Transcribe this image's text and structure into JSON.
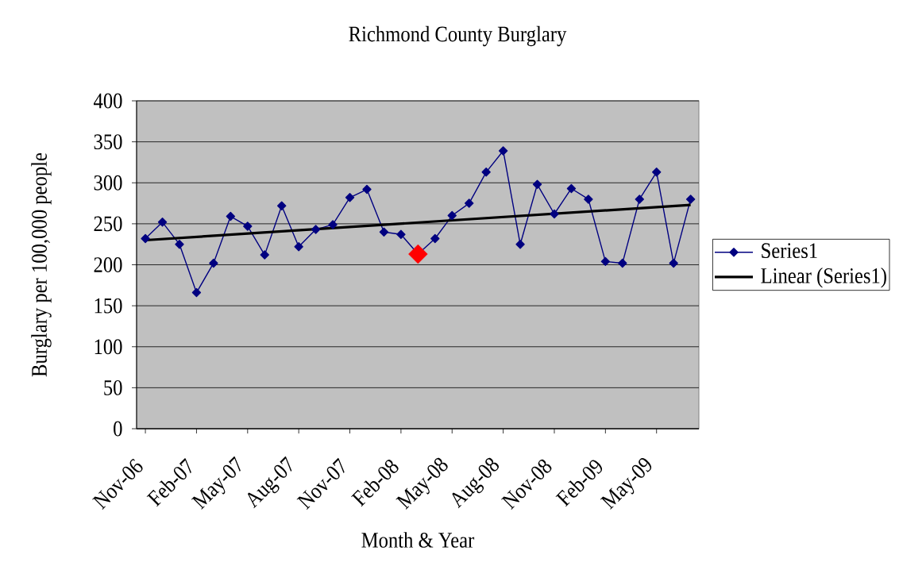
{
  "chart_data": {
    "type": "line",
    "title": "Richmond County Burglary",
    "xlabel": "Month & Year",
    "ylabel": "Burglary per 100,000 people",
    "x": [
      "2006-11",
      "2006-12",
      "2007-01",
      "2007-02",
      "2007-03",
      "2007-04",
      "2007-05",
      "2007-06",
      "2007-07",
      "2007-08",
      "2007-09",
      "2007-10",
      "2007-11",
      "2007-12",
      "2008-01",
      "2008-02",
      "2008-03",
      "2008-04",
      "2008-05",
      "2008-06",
      "2008-07",
      "2008-08",
      "2008-09",
      "2008-10",
      "2008-11",
      "2008-12",
      "2009-01",
      "2009-02",
      "2009-03",
      "2009-04",
      "2009-05",
      "2009-06",
      "2009-07"
    ],
    "series": [
      {
        "name": "Series1",
        "color": "#000080",
        "values": [
          232,
          252,
          225,
          166,
          202,
          259,
          247,
          212,
          272,
          222,
          243,
          249,
          282,
          292,
          240,
          237,
          213,
          232,
          260,
          275,
          313,
          339,
          225,
          298,
          262,
          293,
          280,
          204,
          202,
          280,
          313,
          202,
          280
        ],
        "colors": [
          "#000080",
          "#000080",
          "#000080",
          "#000080",
          "#000080",
          "#000080",
          "#000080",
          "#000080",
          "#000080",
          "#000080",
          "#000080",
          "#000080",
          "#000080",
          "#000080",
          "#000080",
          "#000080",
          "#ff0000",
          "#000080",
          "#000080",
          "#000080",
          "#000080",
          "#000080",
          "#000080",
          "#000080",
          "#000080",
          "#000080",
          "#000080",
          "#000080",
          "#000080",
          "#000080",
          "#000080",
          "#000080",
          "#000080"
        ]
      },
      {
        "name": "Linear (Series1)",
        "type": "line",
        "color": "#000000",
        "marker": "none",
        "x": [
          "2006-11",
          "2009-07"
        ],
        "values": [
          230,
          273
        ]
      }
    ],
    "xlim": [
      "2006-10-16",
      "2009-07-16"
    ],
    "xticks": [
      {
        "value": "2006-11",
        "label": "Nov-06"
      },
      {
        "value": "2007-02",
        "label": "Feb-07"
      },
      {
        "value": "2007-05",
        "label": "May-07"
      },
      {
        "value": "2007-08",
        "label": "Aug-07"
      },
      {
        "value": "2007-11",
        "label": "Nov-07"
      },
      {
        "value": "2008-02",
        "label": "Feb-08"
      },
      {
        "value": "2008-05",
        "label": "May-08"
      },
      {
        "value": "2008-08",
        "label": "Aug-08"
      },
      {
        "value": "2008-11",
        "label": "Nov-08"
      },
      {
        "value": "2009-02",
        "label": "Feb-09"
      },
      {
        "value": "2009-05",
        "label": "May-09"
      }
    ],
    "ylim": [
      0,
      400
    ],
    "yticks": [
      0,
      50,
      100,
      150,
      200,
      250,
      300,
      350,
      400
    ],
    "grid": "y",
    "legend": "right",
    "marker": "diamond",
    "line_style": "solid"
  }
}
